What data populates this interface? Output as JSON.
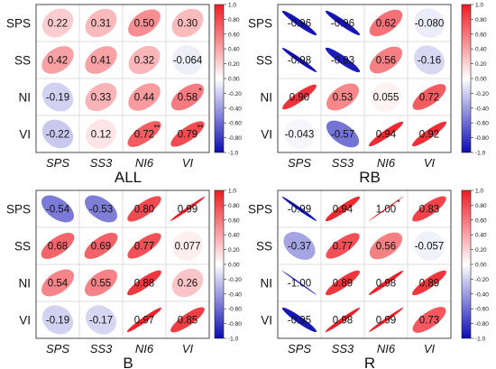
{
  "figure": {
    "type": "correlation-matrix-grid"
  },
  "colors": {
    "negative": "#0b0bb4",
    "zero": "#ffffff",
    "positive": "#ee1c24",
    "grid": "#dddddd",
    "frame": "#222222",
    "text": "#111111"
  },
  "chart_data": [
    {
      "type": "heatmap",
      "title": "ALL",
      "row_labels": [
        "SPS",
        "SS",
        "NI",
        "VI"
      ],
      "col_labels": [
        "SPS",
        "SS3",
        "NI6",
        "VI"
      ],
      "values": [
        [
          0.22,
          0.31,
          0.5,
          0.3
        ],
        [
          0.42,
          0.41,
          0.32,
          -0.064
        ],
        [
          -0.19,
          0.33,
          0.44,
          0.58
        ],
        [
          -0.22,
          0.12,
          0.72,
          0.79
        ]
      ],
      "labels": [
        [
          "0.22",
          "0.31",
          "0.50",
          "0.30"
        ],
        [
          "0.42",
          "0.41",
          "0.32",
          "-0.064"
        ],
        [
          "-0.19",
          "0.33",
          "0.44",
          "0.58"
        ],
        [
          "-0.22",
          "0.12",
          "0.72",
          "0.79"
        ]
      ],
      "stars": [
        [
          "",
          "",
          "",
          ""
        ],
        [
          "",
          "",
          "",
          ""
        ],
        [
          "",
          "",
          "",
          "*"
        ],
        [
          "",
          "",
          "**",
          "**"
        ]
      ],
      "colorbar": {
        "ticks": [
          "1.0",
          "0.80",
          "0.60",
          "0.40",
          "0.20",
          "0.00",
          "-0.20",
          "-0.40",
          "-0.60",
          "-0.80",
          "-1.0"
        ]
      }
    },
    {
      "type": "heatmap",
      "title": "RB",
      "row_labels": [
        "SPS",
        "SS",
        "NI",
        "VI"
      ],
      "col_labels": [
        "SPS",
        "SS3",
        "NI6",
        "VI"
      ],
      "values": [
        [
          -0.96,
          -0.96,
          0.62,
          -0.08
        ],
        [
          -0.98,
          -0.93,
          0.56,
          -0.16
        ],
        [
          0.9,
          0.53,
          0.055,
          0.72
        ],
        [
          -0.043,
          -0.57,
          0.94,
          0.92
        ]
      ],
      "labels": [
        [
          "-0.96",
          "-0.96",
          "0.62",
          "-0.080"
        ],
        [
          "-0.98",
          "-0.93",
          "0.56",
          "-0.16"
        ],
        [
          "0.90",
          "0.53",
          "0.055",
          "0.72"
        ],
        [
          "-0.043",
          "-0.57",
          "0.94",
          "0.92"
        ]
      ],
      "stars": [
        [
          "",
          "",
          "",
          ""
        ],
        [
          "",
          "",
          "",
          ""
        ],
        [
          "",
          "",
          "",
          ""
        ],
        [
          "",
          "",
          "",
          ""
        ]
      ],
      "colorbar": {
        "ticks": [
          "1.0",
          "0.80",
          "0.60",
          "0.40",
          "0.20",
          "0.00",
          "-0.20",
          "-0.40",
          "-0.60",
          "-0.80",
          "-1.0"
        ]
      }
    },
    {
      "type": "heatmap",
      "title": "B",
      "row_labels": [
        "SPS",
        "SS",
        "NI",
        "VI"
      ],
      "col_labels": [
        "SPS",
        "SS3",
        "NI6",
        "VI"
      ],
      "values": [
        [
          -0.54,
          -0.53,
          0.8,
          0.99
        ],
        [
          0.68,
          0.69,
          0.77,
          0.077
        ],
        [
          0.54,
          0.55,
          0.88,
          0.26
        ],
        [
          -0.19,
          -0.17,
          0.97,
          0.85
        ]
      ],
      "labels": [
        [
          "-0.54",
          "-0.53",
          "0.80",
          "0.99"
        ],
        [
          "0.68",
          "0.69",
          "0.77",
          "0.077"
        ],
        [
          "0.54",
          "0.55",
          "0.88",
          "0.26"
        ],
        [
          "-0.19",
          "-0.17",
          "0.97",
          "0.85"
        ]
      ],
      "stars": [
        [
          "",
          "",
          "",
          ""
        ],
        [
          "",
          "",
          "",
          ""
        ],
        [
          "",
          "",
          "",
          ""
        ],
        [
          "",
          "",
          "",
          ""
        ]
      ],
      "colorbar": {
        "ticks": [
          "1.0",
          "0.80",
          "0.60",
          "0.40",
          "0.20",
          "0.00",
          "-0.20",
          "-0.40",
          "-0.60",
          "-0.80",
          "-1.0"
        ]
      }
    },
    {
      "type": "heatmap",
      "title": "R",
      "row_labels": [
        "SPS",
        "SS",
        "NI",
        "VI"
      ],
      "col_labels": [
        "SPS",
        "SS3",
        "NI6",
        "VI"
      ],
      "values": [
        [
          -0.99,
          0.94,
          1.0,
          0.83
        ],
        [
          -0.37,
          0.77,
          0.56,
          -0.057
        ],
        [
          -1.0,
          0.89,
          0.98,
          0.89
        ],
        [
          -0.95,
          0.98,
          0.99,
          0.73
        ]
      ],
      "labels": [
        [
          "-0.99",
          "0.94",
          "1.00",
          "0.83"
        ],
        [
          "-0.37",
          "0.77",
          "0.56",
          "-0.057"
        ],
        [
          "-1.00",
          "0.89",
          "0.98",
          "0.89"
        ],
        [
          "-0.95",
          "0.98",
          "0.99",
          "0.73"
        ]
      ],
      "stars": [
        [
          "",
          "",
          "*",
          ""
        ],
        [
          "",
          "",
          "",
          ""
        ],
        [
          "",
          "",
          "",
          ""
        ],
        [
          "",
          "",
          "",
          ""
        ]
      ],
      "colorbar": {
        "ticks": [
          "1.0",
          "0.80",
          "0.60",
          "0.40",
          "0.20",
          "0.00",
          "-0.20",
          "-0.40",
          "-0.60",
          "-0.80",
          "-1.0"
        ]
      }
    }
  ]
}
